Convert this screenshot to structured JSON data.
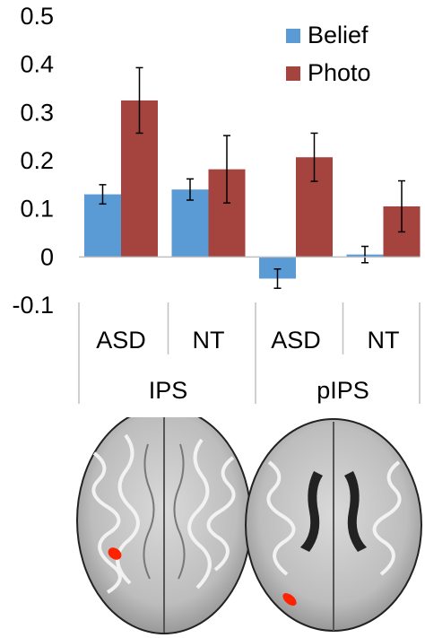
{
  "chart_data": {
    "type": "bar",
    "title": "",
    "xlabel": "",
    "ylabel": "",
    "ylim": [
      -0.1,
      0.5
    ],
    "yticks": [
      -0.1,
      0,
      0.1,
      0.2,
      0.3,
      0.4,
      0.5
    ],
    "ytick_labels": [
      "-0.1",
      "0",
      "0.1",
      "0.2",
      "0.3",
      "0.4",
      "0.5"
    ],
    "categories": [
      "ASD",
      "NT",
      "ASD",
      "NT"
    ],
    "groups": [
      {
        "label": "IPS",
        "categories": [
          0,
          1
        ]
      },
      {
        "label": "pIPS",
        "categories": [
          2,
          3
        ]
      }
    ],
    "series": [
      {
        "name": "Belief",
        "color": "#5b9bd5",
        "values": [
          0.13,
          0.14,
          -0.045,
          0.005
        ],
        "errors": [
          0.02,
          0.022,
          0.02,
          0.017
        ]
      },
      {
        "name": "Photo",
        "color": "#a5433f",
        "values": [
          0.325,
          0.182,
          0.207,
          0.105
        ],
        "errors": [
          0.068,
          0.07,
          0.05,
          0.053
        ]
      }
    ],
    "legend": {
      "position": "top-right"
    },
    "grid": false
  },
  "brain_images": [
    {
      "label": "IPS axial slice",
      "highlight_color": "#ff2200"
    },
    {
      "label": "pIPS axial slice",
      "highlight_color": "#ff2200"
    }
  ]
}
